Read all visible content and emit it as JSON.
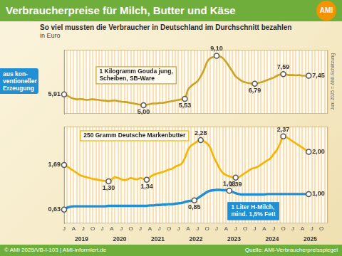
{
  "header": {
    "title": "Verbraucherpreise für Milch, Butter und Käse",
    "logo": "AMI",
    "subtitle": "So viel mussten die Verbraucher in Deutschland im Durchschnitt bezahlen",
    "unit": "in Euro",
    "badge": [
      "aus kon-",
      "ventioneller",
      "Erzeugung"
    ]
  },
  "footer": {
    "left": "© AMI 2025/VB-I-103 | AMI-informiert.de",
    "right": "Quelle: AMI-Verbraucherpreisspiegel"
  },
  "chart_data": [
    {
      "type": "line",
      "categories": [
        "J",
        null,
        null,
        "A",
        null,
        null,
        "J",
        null,
        null,
        "O",
        null,
        null,
        "J",
        null,
        null,
        "A",
        null,
        null,
        "J",
        null,
        null,
        "O",
        null,
        null,
        "J",
        null,
        null,
        "A",
        null,
        null,
        "J",
        null,
        null,
        "O",
        null,
        null,
        "J",
        null,
        null,
        "A",
        null,
        null,
        "J",
        null,
        null,
        "O",
        null,
        null,
        "J",
        null,
        null,
        "A",
        null,
        null,
        "J",
        null,
        null,
        "O",
        null,
        null,
        "J",
        null,
        null,
        "A",
        null,
        null,
        "J",
        null,
        null,
        "O",
        null,
        null,
        "J",
        null,
        null,
        "A",
        null,
        null,
        "J",
        null,
        null,
        "O",
        null,
        null
      ],
      "ylim": [
        4.3,
        9.6
      ],
      "grid": true,
      "tick_labels": false,
      "data_labels": true,
      "annotations": [
        "Juni 2025 = AMI-Schätzung"
      ],
      "series": [
        {
          "name": "1 Kilogramm Gouda jung,\nScheiben, SB-Ware",
          "color": "#c9a227",
          "marker": "circle",
          "values": [
            5.91,
            5.8,
            5.65,
            5.55,
            5.5,
            5.52,
            5.5,
            5.45,
            5.48,
            5.5,
            5.47,
            5.45,
            5.4,
            5.38,
            5.35,
            5.38,
            5.4,
            5.35,
            5.3,
            5.28,
            5.25,
            5.2,
            5.15,
            5.1,
            5.05,
            5.0,
            5.05,
            5.1,
            5.15,
            5.15,
            5.2,
            5.2,
            5.25,
            5.3,
            5.35,
            5.4,
            5.45,
            5.5,
            5.53,
            6.3,
            6.6,
            6.8,
            7.0,
            7.4,
            7.9,
            8.6,
            8.9,
            9.0,
            9.1,
            9.05,
            8.9,
            8.6,
            8.2,
            7.8,
            7.4,
            7.2,
            7.0,
            6.9,
            6.85,
            6.8,
            6.79,
            6.85,
            6.9,
            7.0,
            7.1,
            7.2,
            7.3,
            7.45,
            7.55,
            7.59,
            7.55,
            7.5,
            7.5,
            7.48,
            7.5,
            7.45,
            7.45,
            7.45,
            null,
            null,
            null,
            null,
            null,
            null
          ],
          "value_labels": [
            "5,91",
            null,
            null,
            null,
            null,
            null,
            null,
            null,
            null,
            null,
            null,
            null,
            null,
            null,
            null,
            null,
            null,
            null,
            null,
            null,
            null,
            null,
            null,
            null,
            null,
            "5,00",
            null,
            null,
            null,
            null,
            null,
            null,
            null,
            null,
            null,
            null,
            null,
            null,
            "5,53",
            null,
            null,
            null,
            null,
            null,
            null,
            null,
            null,
            null,
            "9,10",
            null,
            null,
            null,
            null,
            null,
            null,
            null,
            null,
            null,
            null,
            null,
            "6,79",
            null,
            null,
            null,
            null,
            null,
            null,
            null,
            null,
            "7,59",
            null,
            null,
            null,
            null,
            null,
            null,
            null,
            "7,45",
            null,
            null,
            null,
            null,
            null,
            null
          ]
        }
      ]
    },
    {
      "type": "line",
      "categories": [
        "J",
        null,
        null,
        "A",
        null,
        null,
        "J",
        null,
        null,
        "O",
        null,
        null,
        "J",
        null,
        null,
        "A",
        null,
        null,
        "J",
        null,
        null,
        "O",
        null,
        null,
        "J",
        null,
        null,
        "A",
        null,
        null,
        "J",
        null,
        null,
        "O",
        null,
        null,
        "J",
        null,
        null,
        "A",
        null,
        null,
        "J",
        null,
        null,
        "O",
        null,
        null,
        "J",
        null,
        null,
        "A",
        null,
        null,
        "J",
        null,
        null,
        "O",
        null,
        null,
        "J",
        null,
        null,
        "A",
        null,
        null,
        "J",
        null,
        null,
        "O",
        null,
        null,
        "J",
        null,
        null,
        "A",
        null,
        null,
        "J",
        null,
        null,
        "O",
        null,
        null
      ],
      "year_labels": [
        "2019",
        "2020",
        "2021",
        "2022",
        "2023",
        "2024",
        "2025"
      ],
      "ylim": [
        0.3,
        2.6
      ],
      "grid": true,
      "tick_labels": "x",
      "data_labels": true,
      "series": [
        {
          "name": "250 Gramm Deutsche Markenbutter",
          "color": "#f5b400",
          "marker": "circle",
          "values": [
            1.69,
            1.65,
            1.6,
            1.55,
            1.5,
            1.45,
            1.42,
            1.4,
            1.38,
            1.36,
            1.35,
            1.33,
            1.32,
            1.31,
            1.3,
            1.35,
            1.4,
            1.38,
            1.35,
            1.33,
            1.35,
            1.38,
            1.36,
            1.35,
            1.38,
            1.36,
            1.34,
            1.4,
            1.45,
            1.48,
            1.5,
            1.52,
            1.55,
            1.58,
            1.6,
            1.65,
            1.68,
            1.72,
            1.85,
            2.05,
            2.15,
            2.2,
            2.25,
            2.28,
            2.25,
            2.2,
            2.1,
            1.9,
            1.75,
            1.6,
            1.5,
            1.45,
            1.42,
            1.4,
            1.39,
            1.4,
            1.45,
            1.5,
            1.55,
            1.6,
            1.62,
            1.65,
            1.7,
            1.75,
            1.8,
            1.85,
            1.95,
            2.05,
            2.2,
            2.37,
            2.35,
            2.3,
            2.25,
            2.2,
            2.15,
            2.1,
            2.05,
            2.0,
            null,
            null,
            null,
            null,
            null,
            null
          ],
          "value_labels": [
            "1,69",
            null,
            null,
            null,
            null,
            null,
            null,
            null,
            null,
            null,
            null,
            null,
            null,
            null,
            "1,30",
            null,
            null,
            null,
            null,
            null,
            null,
            null,
            null,
            null,
            null,
            null,
            "1,34",
            null,
            null,
            null,
            null,
            null,
            null,
            null,
            null,
            null,
            null,
            null,
            null,
            null,
            null,
            null,
            null,
            "2,28",
            null,
            null,
            null,
            null,
            null,
            null,
            null,
            null,
            null,
            null,
            "1,39",
            null,
            null,
            null,
            null,
            null,
            null,
            null,
            null,
            null,
            null,
            null,
            null,
            null,
            null,
            "2,37",
            null,
            null,
            null,
            null,
            null,
            null,
            null,
            "2,00",
            null,
            null,
            null,
            null,
            null,
            null
          ]
        },
        {
          "name": "1 Liter H-Milch,\nmind. 1,5% Fett",
          "color": "#1f8fd6",
          "marker": "circle",
          "values": [
            0.63,
            0.68,
            0.7,
            0.71,
            0.71,
            0.71,
            0.71,
            0.71,
            0.71,
            0.71,
            0.71,
            0.71,
            0.71,
            0.71,
            0.72,
            0.72,
            0.72,
            0.72,
            0.72,
            0.72,
            0.72,
            0.72,
            0.72,
            0.72,
            0.72,
            0.72,
            0.72,
            0.73,
            0.73,
            0.74,
            0.74,
            0.75,
            0.75,
            0.76,
            0.76,
            0.77,
            0.78,
            0.79,
            0.81,
            0.83,
            0.84,
            0.85,
            0.9,
            0.95,
            1.0,
            1.05,
            1.08,
            1.09,
            1.1,
            1.1,
            1.09,
            1.09,
            1.08,
            1.05,
            1.02,
            1.0,
            0.99,
            0.99,
            0.99,
            0.99,
            0.99,
            0.99,
            0.99,
            0.99,
            1.0,
            1.0,
            1.0,
            1.0,
            1.0,
            1.0,
            1.0,
            1.0,
            1.0,
            1.0,
            1.0,
            1.0,
            1.0,
            1.0,
            null,
            null,
            null,
            null,
            null,
            null
          ],
          "value_labels": [
            "0,63",
            null,
            null,
            null,
            null,
            null,
            null,
            null,
            null,
            null,
            null,
            null,
            null,
            null,
            null,
            null,
            null,
            null,
            null,
            null,
            null,
            null,
            null,
            null,
            null,
            null,
            null,
            null,
            null,
            null,
            null,
            null,
            null,
            null,
            null,
            null,
            null,
            null,
            null,
            null,
            null,
            "0,85",
            null,
            null,
            null,
            null,
            null,
            null,
            null,
            null,
            null,
            null,
            "1,08",
            null,
            null,
            null,
            null,
            null,
            null,
            null,
            null,
            null,
            null,
            null,
            null,
            null,
            null,
            null,
            null,
            null,
            null,
            null,
            null,
            null,
            null,
            null,
            null,
            "1,00",
            null,
            null,
            null,
            null,
            null,
            null
          ]
        }
      ]
    }
  ]
}
